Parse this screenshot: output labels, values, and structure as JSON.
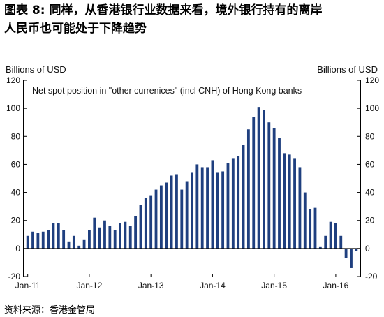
{
  "figure": {
    "title": "图表 8: 同样，从香港银行业数据来看，境外银行持有的离岸\n人民币也可能处于下降趋势",
    "source": "资料来源：香港金管局"
  },
  "chart_data": {
    "type": "bar",
    "title": "Net spot position in \"other currenices\" (incl CNH) of Hong Kong banks",
    "ylabel_left": "Billions of USD",
    "ylabel_right": "Billions of USD",
    "xlabel": "",
    "ylim": [
      -20,
      120
    ],
    "yticks": [
      120,
      100,
      80,
      60,
      40,
      20,
      0,
      -20
    ],
    "x_tick_labels": [
      "Jan-11",
      "Jan-12",
      "Jan-13",
      "Jan-14",
      "Jan-15",
      "Jan-16"
    ],
    "x_tick_indices": [
      0,
      12,
      24,
      36,
      48,
      60
    ],
    "grid": false,
    "bar_color": "#1f3f7f",
    "series": [
      {
        "values": [
          9,
          12,
          11,
          12,
          13,
          18,
          18,
          13,
          5,
          9,
          2,
          6,
          13,
          22,
          15,
          20,
          16,
          13,
          18,
          19,
          16,
          23,
          31,
          36,
          38,
          42,
          45,
          47,
          52,
          53,
          42,
          48,
          54,
          60,
          58,
          58,
          63,
          54,
          55,
          61,
          64,
          66,
          74,
          85,
          94,
          101,
          99,
          90,
          86,
          79,
          68,
          67,
          64,
          58,
          40,
          28,
          29,
          1,
          9,
          19,
          18,
          9,
          -7,
          -14,
          -2
        ]
      }
    ]
  }
}
